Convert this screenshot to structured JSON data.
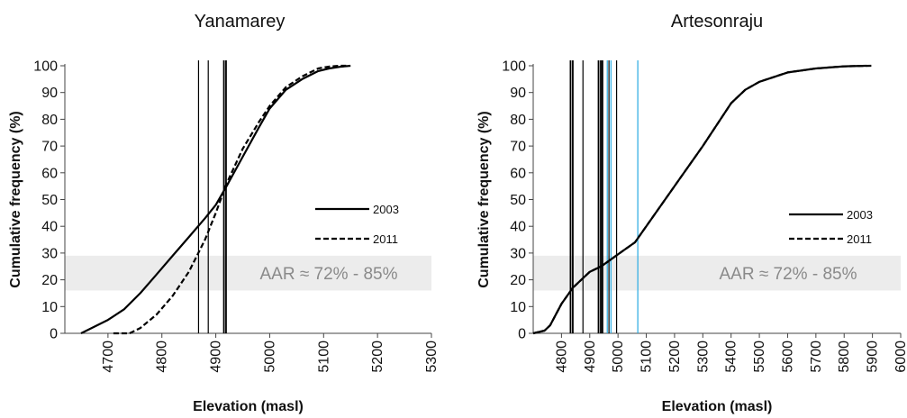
{
  "chart_data": [
    {
      "type": "line",
      "title": "Yanamarey",
      "xlabel": "Elevation (masl)",
      "ylabel": "Cumulative frequency (%)",
      "xlim": [
        4620,
        5300
      ],
      "ylim": [
        0,
        100
      ],
      "xticks": [
        4700,
        4800,
        4900,
        5000,
        5100,
        5200,
        5300
      ],
      "yticks": [
        0,
        10,
        20,
        30,
        40,
        50,
        60,
        70,
        80,
        90,
        100
      ],
      "aar_band": {
        "y": [
          16,
          29
        ],
        "label": "AAR ≈ 72% - 85%"
      },
      "legend_position": "right",
      "series": [
        {
          "name": "2003",
          "style": "solid",
          "x": [
            4650,
            4700,
            4730,
            4760,
            4790,
            4820,
            4850,
            4880,
            4900,
            4920,
            4950,
            4980,
            5000,
            5030,
            5060,
            5090,
            5110,
            5130,
            5150
          ],
          "y": [
            0,
            5,
            9,
            15,
            22,
            29,
            36,
            43,
            48,
            55,
            66,
            77,
            84,
            91,
            95,
            98,
            99,
            99.6,
            100
          ]
        },
        {
          "name": "2011",
          "style": "dashed",
          "x": [
            4710,
            4740,
            4760,
            4790,
            4820,
            4850,
            4880,
            4900,
            4920,
            4950,
            4980,
            5000,
            5030,
            5060,
            5090,
            5110,
            5130,
            5145
          ],
          "y": [
            0,
            0,
            2,
            7,
            14,
            23,
            35,
            45,
            56,
            69,
            79,
            85,
            92,
            96,
            99,
            99.7,
            100,
            100
          ]
        }
      ],
      "vlines": [
        {
          "x": 4868,
          "color": "#000000",
          "weight": 1.2
        },
        {
          "x": 4886,
          "color": "#000000",
          "weight": 1.2
        },
        {
          "x": 4915,
          "color": "#000000",
          "weight": 1.8
        },
        {
          "x": 4919,
          "color": "#000000",
          "weight": 1.8
        }
      ]
    },
    {
      "type": "line",
      "title": "Artesonraju",
      "xlabel": "Elevation (masl)",
      "ylabel": "Cumulative frequency (%)",
      "xlim": [
        4700,
        6000
      ],
      "ylim": [
        0,
        100
      ],
      "xticks": [
        4800,
        4900,
        5000,
        5100,
        5200,
        5300,
        5400,
        5500,
        5600,
        5700,
        5800,
        5900,
        6000
      ],
      "yticks": [
        0,
        10,
        20,
        30,
        40,
        50,
        60,
        70,
        80,
        90,
        100
      ],
      "aar_band": {
        "y": [
          16,
          29
        ],
        "label": "AAR ≈ 72% - 85%"
      },
      "legend_position": "right",
      "series": [
        {
          "name": "2003",
          "style": "solid",
          "x": [
            4700,
            4740,
            4760,
            4780,
            4800,
            4820,
            4840,
            4870,
            4900,
            4940,
            4980,
            5020,
            5060,
            5100,
            5200,
            5300,
            5400,
            5450,
            5500,
            5600,
            5700,
            5800,
            5880
          ],
          "y": [
            0,
            1,
            3,
            7,
            11,
            14,
            17,
            20,
            23,
            25,
            28,
            31,
            34,
            40,
            55,
            70,
            86,
            91,
            94,
            97.5,
            99,
            99.8,
            100
          ]
        },
        {
          "name": "2011",
          "style": "dashed",
          "x": [
            4700,
            4740,
            4760,
            4780,
            4800,
            4820,
            4840,
            4870,
            4900,
            4940,
            4980,
            5020,
            5060,
            5100,
            5200,
            5300,
            5400,
            5450,
            5500,
            5600,
            5700,
            5800,
            5900
          ],
          "y": [
            0,
            1,
            3,
            7,
            11,
            14,
            17,
            20,
            23,
            25,
            28,
            31,
            34,
            40,
            55,
            70,
            86,
            91,
            94,
            97.5,
            99,
            99.8,
            100
          ]
        }
      ],
      "vlines": [
        {
          "x": 4832,
          "color": "#000000",
          "weight": 1.8
        },
        {
          "x": 4840,
          "color": "#000000",
          "weight": 1.8
        },
        {
          "x": 4876,
          "color": "#000000",
          "weight": 1.2
        },
        {
          "x": 4931,
          "color": "#000000",
          "weight": 1.8
        },
        {
          "x": 4939,
          "color": "#000000",
          "weight": 1.8
        },
        {
          "x": 4945,
          "color": "#000000",
          "weight": 1.8
        },
        {
          "x": 4962,
          "color": "#29abe2",
          "weight": 1.2
        },
        {
          "x": 4968,
          "color": "#000000",
          "weight": 1.2
        },
        {
          "x": 4975,
          "color": "#29abe2",
          "weight": 1.2
        },
        {
          "x": 4995,
          "color": "#000000",
          "weight": 1.2
        },
        {
          "x": 5070,
          "color": "#29abe2",
          "weight": 1.2
        }
      ]
    }
  ],
  "colors": {
    "band": "#ececec",
    "aar_text": "#8a8a8a",
    "line": "#000000",
    "accent": "#29abe2"
  }
}
